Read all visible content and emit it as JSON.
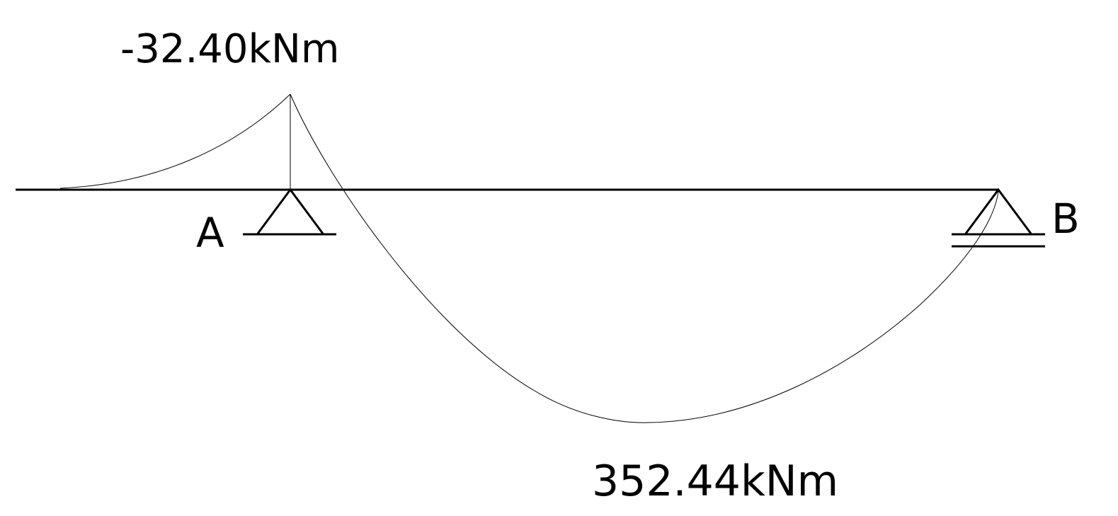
{
  "diagram": {
    "beam": {
      "left_end": "free",
      "support_a": "pinned",
      "support_b": "roller"
    },
    "labels": {
      "negative_moment": "-32.40kNm",
      "positive_moment": "352.44kNm",
      "support_a": "A",
      "support_b": "B"
    },
    "colors": {
      "beam": "#000000",
      "curve": "#000000",
      "background": "#ffffff"
    }
  }
}
